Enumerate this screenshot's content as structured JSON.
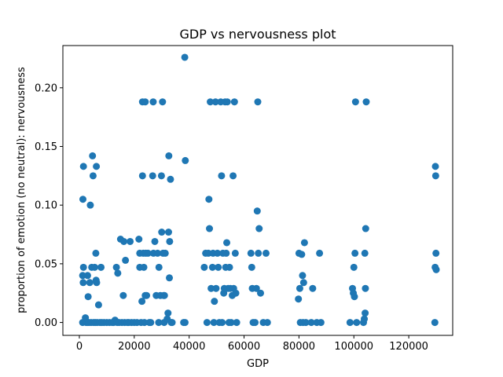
{
  "chart_data": {
    "type": "scatter",
    "title": "GDP vs nervousness plot",
    "xlabel": "GDP",
    "ylabel": "proportion of emotion (no neutral): nervousness",
    "xlim": [
      -6000,
      136000
    ],
    "ylim": [
      -0.011,
      0.236
    ],
    "xticks": [
      0,
      20000,
      40000,
      60000,
      80000,
      100000,
      120000
    ],
    "xtick_labels": [
      "0",
      "20000",
      "40000",
      "60000",
      "80000",
      "100000",
      "120000"
    ],
    "yticks": [
      0.0,
      0.05,
      0.1,
      0.15,
      0.2
    ],
    "ytick_labels": [
      "0.00",
      "0.05",
      "0.10",
      "0.15",
      "0.20"
    ],
    "grid": false,
    "marker_color": "#1f77b4",
    "series": [
      {
        "points": [
          [
            1200,
            0
          ],
          [
            1500,
            0.047
          ],
          [
            1300,
            0.105
          ],
          [
            1500,
            0.133
          ],
          [
            1200,
            0.04
          ],
          [
            1400,
            0.034
          ],
          [
            2200,
            0.004
          ],
          [
            2500,
            0
          ],
          [
            3000,
            0
          ],
          [
            3500,
            0
          ],
          [
            3000,
            0.04
          ],
          [
            3200,
            0.022
          ],
          [
            3800,
            0.034
          ],
          [
            4000,
            0.1
          ],
          [
            4300,
            0
          ],
          [
            4500,
            0.047
          ],
          [
            4800,
            0.142
          ],
          [
            5000,
            0.125
          ],
          [
            5200,
            0
          ],
          [
            5600,
            0.047
          ],
          [
            5800,
            0
          ],
          [
            6000,
            0.059
          ],
          [
            6100,
            0.036
          ],
          [
            6200,
            0.133
          ],
          [
            6300,
            0.034
          ],
          [
            6500,
            0
          ],
          [
            7000,
            0.015
          ],
          [
            7500,
            0
          ],
          [
            7900,
            0.047
          ],
          [
            8200,
            0
          ],
          [
            9000,
            0
          ],
          [
            10000,
            0
          ],
          [
            11000,
            0
          ],
          [
            12000,
            0
          ],
          [
            12500,
            0
          ],
          [
            13000,
            0.002
          ],
          [
            13500,
            0.047
          ],
          [
            13800,
            0
          ],
          [
            14000,
            0.042
          ],
          [
            14500,
            0
          ],
          [
            15000,
            0.071
          ],
          [
            15500,
            0
          ],
          [
            16000,
            0.023
          ],
          [
            16200,
            0.069
          ],
          [
            16500,
            0
          ],
          [
            16800,
            0.053
          ],
          [
            17500,
            0
          ],
          [
            18000,
            0
          ],
          [
            18500,
            0.069
          ],
          [
            19000,
            0
          ],
          [
            20000,
            0
          ],
          [
            21000,
            0
          ],
          [
            21700,
            0.071
          ],
          [
            22000,
            0.059
          ],
          [
            22000,
            0.047
          ],
          [
            22500,
            0
          ],
          [
            22800,
            0.018
          ],
          [
            23000,
            0.125
          ],
          [
            23000,
            0.188
          ],
          [
            23300,
            0.059
          ],
          [
            23500,
            0.047
          ],
          [
            23700,
            0
          ],
          [
            24000,
            0.023
          ],
          [
            24000,
            0.188
          ],
          [
            24200,
            0.059
          ],
          [
            24500,
            0.023
          ],
          [
            25000,
            0.059
          ],
          [
            25500,
            0
          ],
          [
            26000,
            0
          ],
          [
            26700,
            0.125
          ],
          [
            26900,
            0.188
          ],
          [
            27000,
            0.059
          ],
          [
            27500,
            0.069
          ],
          [
            28000,
            0.023
          ],
          [
            28500,
            0.059
          ],
          [
            28900,
            0
          ],
          [
            29000,
            0.047
          ],
          [
            29500,
            0.023
          ],
          [
            29900,
            0.125
          ],
          [
            30000,
            0.077
          ],
          [
            30300,
            0.188
          ],
          [
            30500,
            0.059
          ],
          [
            30700,
            0.023
          ],
          [
            30900,
            0
          ],
          [
            31000,
            0.023
          ],
          [
            31300,
            0.059
          ],
          [
            32000,
            0.003
          ],
          [
            32300,
            0.008
          ],
          [
            32500,
            0.077
          ],
          [
            32600,
            0.142
          ],
          [
            32800,
            0.038
          ],
          [
            32900,
            0.069
          ],
          [
            33200,
            0.122
          ],
          [
            33500,
            0
          ],
          [
            33800,
            0
          ],
          [
            38000,
            0
          ],
          [
            38400,
            0.226
          ],
          [
            38500,
            0
          ],
          [
            38600,
            0.138
          ],
          [
            45500,
            0.047
          ],
          [
            46000,
            0.059
          ],
          [
            46500,
            0
          ],
          [
            47000,
            0.059
          ],
          [
            47200,
            0.105
          ],
          [
            47400,
            0.08
          ],
          [
            47700,
            0.188
          ],
          [
            48000,
            0.029
          ],
          [
            48500,
            0.047
          ],
          [
            48700,
            0.059
          ],
          [
            49000,
            0
          ],
          [
            49200,
            0.018
          ],
          [
            49600,
            0.188
          ],
          [
            49800,
            0.029
          ],
          [
            50300,
            0.059
          ],
          [
            50600,
            0.047
          ],
          [
            51000,
            0
          ],
          [
            51500,
            0.188
          ],
          [
            51800,
            0.125
          ],
          [
            52000,
            0
          ],
          [
            52300,
            0.059
          ],
          [
            52600,
            0.025
          ],
          [
            52800,
            0.029
          ],
          [
            53100,
            0.188
          ],
          [
            53300,
            0.047
          ],
          [
            53500,
            0.059
          ],
          [
            53700,
            0.068
          ],
          [
            53900,
            0.188
          ],
          [
            54200,
            0.029
          ],
          [
            54500,
            0
          ],
          [
            54700,
            0.047
          ],
          [
            55000,
            0.029
          ],
          [
            55300,
            0
          ],
          [
            55700,
            0.023
          ],
          [
            56000,
            0.125
          ],
          [
            56200,
            0.029
          ],
          [
            56500,
            0.188
          ],
          [
            56800,
            0.059
          ],
          [
            57000,
            0.025
          ],
          [
            57300,
            0
          ],
          [
            62500,
            0.059
          ],
          [
            62800,
            0.047
          ],
          [
            63000,
            0.029
          ],
          [
            63300,
            0
          ],
          [
            64000,
            0
          ],
          [
            64500,
            0.029
          ],
          [
            64800,
            0.095
          ],
          [
            65000,
            0.188
          ],
          [
            65200,
            0.059
          ],
          [
            65500,
            0.08
          ],
          [
            66000,
            0.025
          ],
          [
            67000,
            0
          ],
          [
            68000,
            0.059
          ],
          [
            68500,
            0
          ],
          [
            79800,
            0.02
          ],
          [
            80000,
            0.059
          ],
          [
            80300,
            0.029
          ],
          [
            80500,
            0
          ],
          [
            81000,
            0.058
          ],
          [
            81300,
            0.04
          ],
          [
            81500,
            0
          ],
          [
            81700,
            0.034
          ],
          [
            82000,
            0.068
          ],
          [
            82500,
            0
          ],
          [
            84500,
            0
          ],
          [
            85000,
            0.029
          ],
          [
            86500,
            0
          ],
          [
            87500,
            0.059
          ],
          [
            88000,
            0
          ],
          [
            98600,
            0
          ],
          [
            99500,
            0.029
          ],
          [
            99800,
            0.025
          ],
          [
            100000,
            0.047
          ],
          [
            100200,
            0.022
          ],
          [
            100400,
            0.059
          ],
          [
            100600,
            0.188
          ],
          [
            101000,
            0
          ],
          [
            103500,
            0
          ],
          [
            103800,
            0.003
          ],
          [
            104000,
            0.059
          ],
          [
            104100,
            0.008
          ],
          [
            104200,
            0.029
          ],
          [
            104300,
            0.08
          ],
          [
            104500,
            0.188
          ],
          [
            129500,
            0
          ],
          [
            129600,
            0.047
          ],
          [
            129700,
            0.133
          ],
          [
            129800,
            0.125
          ],
          [
            129900,
            0.059
          ],
          [
            130000,
            0.045
          ]
        ]
      }
    ]
  }
}
